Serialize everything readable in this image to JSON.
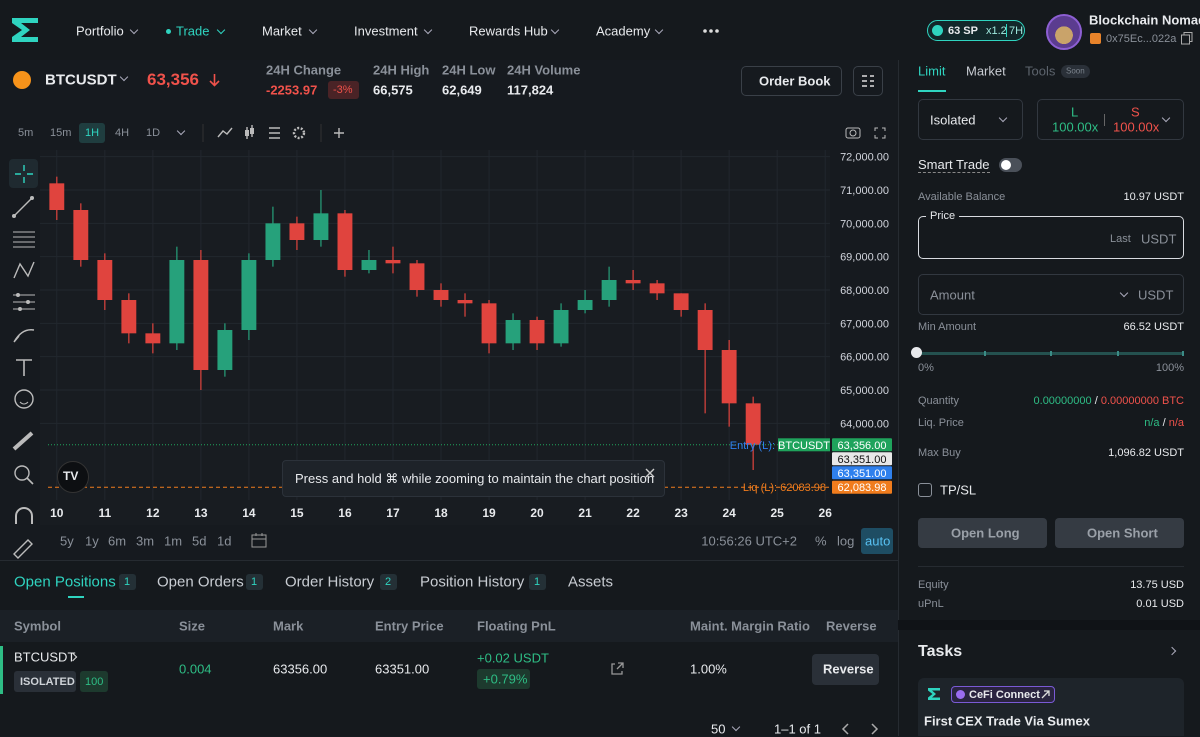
{
  "nav": {
    "items": [
      "Portfolio",
      "Trade",
      "Market",
      "Investment",
      "Rewards Hub",
      "Academy"
    ],
    "sp": "63 SP",
    "boost": "x1.2",
    "timer": "7H",
    "user": "Blockchain Nomad",
    "wallet": "0x75Ec...022a"
  },
  "ticker": {
    "symbol": "BTCUSDT",
    "price": "63,356",
    "stats": [
      {
        "label": "24H Change",
        "value": "-2253.97",
        "pct": "-3%"
      },
      {
        "label": "24H High",
        "value": "66,575"
      },
      {
        "label": "24H Low",
        "value": "62,649"
      },
      {
        "label": "24H Volume",
        "value": "117,824"
      }
    ],
    "order_book": "Order Book"
  },
  "toolbar": {
    "intervals": [
      "5m",
      "15m",
      "1H",
      "4H",
      "1D"
    ]
  },
  "chart_data": {
    "type": "candlestick",
    "x": [
      10,
      10.5,
      11,
      11.5,
      12,
      12.5,
      13,
      13.5,
      14,
      14.5,
      15,
      15.5,
      16,
      16.5,
      17,
      17.5,
      18,
      18.5,
      19,
      19.5,
      20,
      20.5,
      21,
      21.5,
      22,
      22.5,
      23,
      23.5,
      24,
      24.5
    ],
    "open": [
      71200,
      70400,
      68900,
      67700,
      66700,
      66400,
      68900,
      65600,
      66800,
      68900,
      70000,
      69500,
      70300,
      68600,
      68900,
      68800,
      68000,
      67700,
      67600,
      66400,
      67100,
      66400,
      67400,
      67700,
      68300,
      68200,
      67900,
      67400,
      66200,
      64600
    ],
    "high": [
      71400,
      70600,
      69100,
      67900,
      67000,
      69300,
      69200,
      67000,
      69100,
      70500,
      70200,
      71000,
      70400,
      69200,
      69300,
      68900,
      68200,
      67900,
      67700,
      67300,
      67200,
      67600,
      68000,
      68700,
      68600,
      68300,
      67900,
      67600,
      66500,
      64800
    ],
    "low": [
      70100,
      68700,
      67400,
      66400,
      66100,
      66200,
      65000,
      65400,
      66500,
      68700,
      69200,
      69300,
      68400,
      68500,
      68500,
      67800,
      67500,
      67200,
      66100,
      66200,
      66200,
      66300,
      67300,
      67500,
      68000,
      67700,
      67200,
      64300,
      63900,
      62600
    ],
    "close": [
      70400,
      68900,
      67700,
      66700,
      66400,
      68900,
      65600,
      66800,
      68900,
      70000,
      69500,
      70300,
      68600,
      68900,
      68800,
      68000,
      67700,
      67600,
      66400,
      67100,
      66400,
      67400,
      67700,
      68300,
      68200,
      67900,
      67400,
      66200,
      64600,
      63356
    ],
    "up_color": "#26a17b",
    "down_color": "#e0443e",
    "xlim": [
      9.65,
      26.1
    ],
    "xticks": [
      10,
      11,
      12,
      13,
      14,
      15,
      16,
      17,
      18,
      19,
      20,
      21,
      22,
      23,
      24,
      25,
      26
    ],
    "ylim": [
      61700,
      72200
    ],
    "yticks": [
      {
        "value": 64000,
        "label": "64,000.00"
      },
      {
        "value": 65000,
        "label": "65,000.00"
      },
      {
        "value": 66000,
        "label": "66,000.00"
      },
      {
        "value": 67000,
        "label": "67,000.00"
      },
      {
        "value": 68000,
        "label": "68,000.00"
      },
      {
        "value": 69000,
        "label": "69,000.00"
      },
      {
        "value": 70000,
        "label": "70,000.00"
      },
      {
        "value": 71000,
        "label": "71,000.00"
      },
      {
        "value": 72000,
        "label": "72,000.00"
      }
    ],
    "grid": true,
    "markers": [
      {
        "value": 63356,
        "label": "63,356.00",
        "color": "#1fa35c",
        "line": "dotted",
        "tag": "BTCUSDT",
        "tag_style": "box"
      },
      {
        "value": 63351,
        "label": "63,351.00",
        "color": "#e8e8e8"
      },
      {
        "value": 63351,
        "label": "63,351.00",
        "color": "#2f80ed",
        "tag": "Entry (L):",
        "tag_style": "text"
      },
      {
        "value": 62083.98,
        "label": "62,083.98",
        "color": "#f07c1d",
        "line": "dashed",
        "tag": "Liq (L): 62083.98",
        "tag_style": "text"
      }
    ]
  },
  "chart_notice": "Press and hold ⌘ while zooming to maintain the chart position",
  "chart_footer": {
    "ranges": [
      "5y",
      "1y",
      "6m",
      "3m",
      "1m",
      "5d",
      "1d"
    ],
    "clock": "10:56:26 UTC+2",
    "options": [
      "%",
      "log",
      "auto"
    ]
  },
  "positions": {
    "tabs": [
      {
        "label": "Open Positions",
        "count": "1"
      },
      {
        "label": "Open Orders",
        "count": "1"
      },
      {
        "label": "Order History",
        "count": "2"
      },
      {
        "label": "Position History",
        "count": "1"
      },
      {
        "label": "Assets"
      }
    ],
    "columns": [
      "Symbol",
      "Size",
      "Mark",
      "Entry Price",
      "Floating PnL",
      "Maint. Margin Ratio",
      "Reverse"
    ],
    "rows": [
      {
        "symbol": "BTCUSDT",
        "margin": "ISOLATED",
        "leverage": "100",
        "size": "0.004",
        "mark": "63356.00",
        "entry": "63351.00",
        "pnl": "+0.02 USDT",
        "pnl_pct": "+0.79%",
        "margin_ratio": "1.00%",
        "action": "Reverse"
      }
    ],
    "page_size": "50",
    "range": "1–1 of 1"
  },
  "order_form": {
    "tabs": [
      "Limit",
      "Market",
      "Tools"
    ],
    "soon": "Soon",
    "margin_mode": "Isolated",
    "long_label": "L",
    "long_lev": "100.00x",
    "short_label": "S",
    "short_lev": "100.00x",
    "smart_trade": "Smart Trade",
    "balance_label": "Available Balance",
    "balance": "10.97 USDT",
    "price_label": "Price",
    "price_hint": "Last",
    "price_unit": "USDT",
    "amount_label": "Amount",
    "amount_unit": "USDT",
    "min_label": "Min Amount",
    "min": "66.52 USDT",
    "slider_min": "0%",
    "slider_max": "100%",
    "separator": "/",
    "rows": [
      {
        "label": "Quantity",
        "long": "0.00000000",
        "short": "0.00000000 BTC"
      },
      {
        "label": "Liq. Price",
        "long": "n/a",
        "short": "n/a"
      }
    ],
    "max_buy_label": "Max Buy",
    "max_buy": "1,096.82 USDT",
    "tpsl": "TP/SL",
    "open_long": "Open Long",
    "open_short": "Open Short",
    "summary": [
      {
        "label": "Equity",
        "value": "13.75 USD"
      },
      {
        "label": "uPnL",
        "value": "0.01 USD"
      }
    ]
  },
  "tasks": {
    "title": "Tasks",
    "tag": "CeFi Connect",
    "task": "First CEX Trade Via Sumex"
  }
}
